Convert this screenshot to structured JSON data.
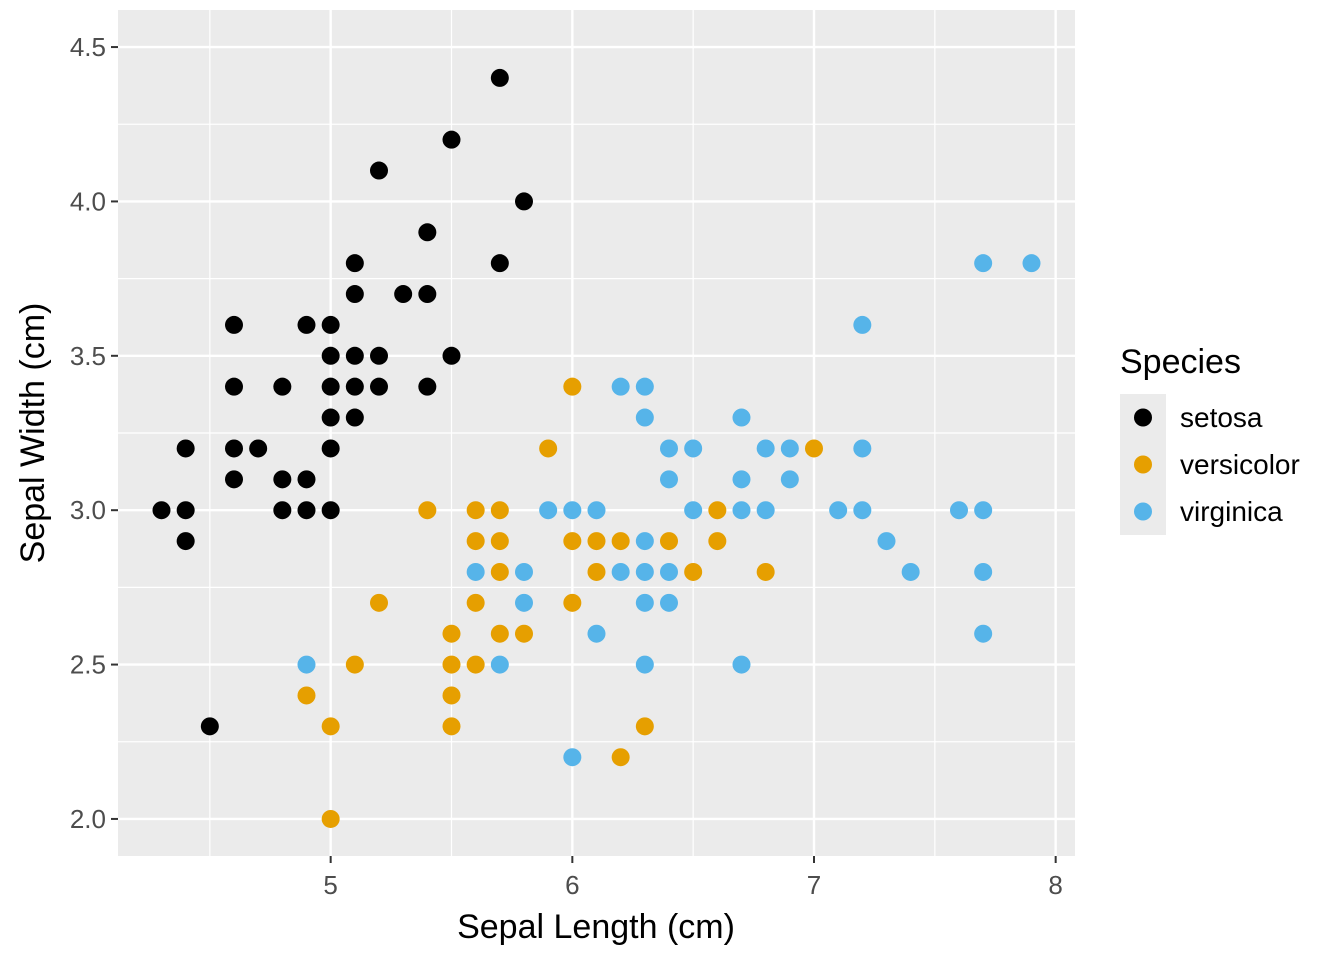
{
  "chart_data": {
    "type": "scatter",
    "title": "",
    "xlabel": "Sepal Length (cm)",
    "ylabel": "Sepal Width (cm)",
    "xlim": [
      4.12,
      8.08
    ],
    "ylim": [
      1.88,
      4.62
    ],
    "x_ticks": [
      5,
      6,
      7,
      8
    ],
    "x_tick_labels": [
      "5",
      "6",
      "7",
      "8"
    ],
    "y_ticks": [
      2.0,
      2.5,
      3.0,
      3.5,
      4.0,
      4.5
    ],
    "y_tick_labels": [
      "2.0",
      "2.5",
      "3.0",
      "3.5",
      "4.0",
      "4.5"
    ],
    "grid": true,
    "legend": {
      "title": "Species",
      "position": "right"
    },
    "series": [
      {
        "name": "setosa",
        "color": "#000000",
        "points": [
          [
            5.7,
            4.4
          ],
          [
            5.5,
            4.2
          ],
          [
            5.2,
            4.1
          ],
          [
            5.8,
            4.0
          ],
          [
            5.4,
            3.9
          ],
          [
            5.1,
            3.8
          ],
          [
            5.7,
            3.8
          ],
          [
            5.1,
            3.7
          ],
          [
            5.3,
            3.7
          ],
          [
            5.4,
            3.7
          ],
          [
            4.6,
            3.6
          ],
          [
            4.9,
            3.6
          ],
          [
            5.0,
            3.6
          ],
          [
            5.0,
            3.5
          ],
          [
            5.1,
            3.5
          ],
          [
            5.2,
            3.5
          ],
          [
            5.5,
            3.5
          ],
          [
            4.6,
            3.4
          ],
          [
            4.8,
            3.4
          ],
          [
            5.0,
            3.4
          ],
          [
            5.1,
            3.4
          ],
          [
            5.2,
            3.4
          ],
          [
            5.4,
            3.4
          ],
          [
            5.0,
            3.3
          ],
          [
            5.1,
            3.3
          ],
          [
            4.4,
            3.2
          ],
          [
            4.6,
            3.2
          ],
          [
            4.7,
            3.2
          ],
          [
            5.0,
            3.2
          ],
          [
            4.6,
            3.1
          ],
          [
            4.8,
            3.1
          ],
          [
            4.9,
            3.1
          ],
          [
            4.3,
            3.0
          ],
          [
            4.4,
            3.0
          ],
          [
            4.8,
            3.0
          ],
          [
            4.9,
            3.0
          ],
          [
            5.0,
            3.0
          ],
          [
            4.4,
            2.9
          ],
          [
            4.5,
            2.3
          ]
        ]
      },
      {
        "name": "versicolor",
        "color": "#E69F00",
        "points": [
          [
            6.0,
            3.4
          ],
          [
            5.9,
            3.2
          ],
          [
            7.0,
            3.2
          ],
          [
            5.4,
            3.0
          ],
          [
            5.6,
            3.0
          ],
          [
            5.7,
            3.0
          ],
          [
            6.6,
            3.0
          ],
          [
            5.6,
            2.9
          ],
          [
            5.7,
            2.9
          ],
          [
            6.0,
            2.9
          ],
          [
            6.1,
            2.9
          ],
          [
            6.2,
            2.9
          ],
          [
            6.4,
            2.9
          ],
          [
            6.6,
            2.9
          ],
          [
            5.7,
            2.8
          ],
          [
            6.1,
            2.8
          ],
          [
            6.5,
            2.8
          ],
          [
            6.8,
            2.8
          ],
          [
            5.2,
            2.7
          ],
          [
            5.6,
            2.7
          ],
          [
            6.0,
            2.7
          ],
          [
            5.5,
            2.6
          ],
          [
            5.7,
            2.6
          ],
          [
            5.8,
            2.6
          ],
          [
            5.1,
            2.5
          ],
          [
            5.5,
            2.5
          ],
          [
            5.6,
            2.5
          ],
          [
            4.9,
            2.4
          ],
          [
            5.5,
            2.4
          ],
          [
            5.0,
            2.3
          ],
          [
            5.5,
            2.3
          ],
          [
            6.3,
            2.3
          ],
          [
            6.2,
            2.2
          ],
          [
            5.0,
            2.0
          ]
        ]
      },
      {
        "name": "virginica",
        "color": "#56B4E9",
        "points": [
          [
            7.7,
            3.8
          ],
          [
            7.9,
            3.8
          ],
          [
            7.2,
            3.6
          ],
          [
            6.2,
            3.4
          ],
          [
            6.3,
            3.4
          ],
          [
            6.3,
            3.3
          ],
          [
            6.7,
            3.3
          ],
          [
            6.4,
            3.2
          ],
          [
            6.5,
            3.2
          ],
          [
            6.8,
            3.2
          ],
          [
            6.9,
            3.2
          ],
          [
            7.2,
            3.2
          ],
          [
            6.4,
            3.1
          ],
          [
            6.7,
            3.1
          ],
          [
            6.9,
            3.1
          ],
          [
            5.9,
            3.0
          ],
          [
            6.0,
            3.0
          ],
          [
            6.1,
            3.0
          ],
          [
            6.5,
            3.0
          ],
          [
            6.7,
            3.0
          ],
          [
            6.8,
            3.0
          ],
          [
            7.1,
            3.0
          ],
          [
            7.2,
            3.0
          ],
          [
            7.6,
            3.0
          ],
          [
            7.7,
            3.0
          ],
          [
            6.3,
            2.9
          ],
          [
            7.3,
            2.9
          ],
          [
            5.6,
            2.8
          ],
          [
            5.8,
            2.8
          ],
          [
            6.2,
            2.8
          ],
          [
            6.3,
            2.8
          ],
          [
            6.4,
            2.8
          ],
          [
            7.4,
            2.8
          ],
          [
            7.7,
            2.8
          ],
          [
            5.8,
            2.7
          ],
          [
            6.3,
            2.7
          ],
          [
            6.4,
            2.7
          ],
          [
            6.1,
            2.6
          ],
          [
            7.7,
            2.6
          ],
          [
            4.9,
            2.5
          ],
          [
            5.7,
            2.5
          ],
          [
            6.3,
            2.5
          ],
          [
            6.7,
            2.5
          ],
          [
            6.0,
            2.2
          ]
        ]
      }
    ]
  }
}
